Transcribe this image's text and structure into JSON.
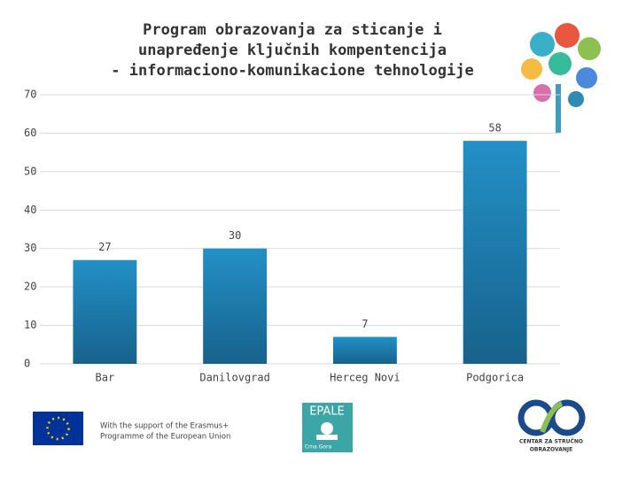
{
  "chart_data": {
    "type": "bar",
    "title": [
      "Program obrazovanja za sticanje i",
      "unapređenje ključnih kompentencija",
      "- informaciono-komunikacione tehnologije"
    ],
    "categories": [
      "Bar",
      "Danilovgrad",
      "Herceg Novi",
      "Podgorica"
    ],
    "values": [
      27,
      30,
      7,
      58
    ],
    "color": "#1f7fb3",
    "ylim": [
      0,
      70
    ],
    "yticks": [
      0,
      10,
      20,
      30,
      40,
      50,
      60,
      70
    ],
    "grid": true
  },
  "footer": {
    "eu_text": [
      "With the support of the Erasmus+",
      "Programme of the European Union"
    ],
    "epale": "EPALE",
    "epale_sub": "Crna Gora",
    "cso": [
      "CENTAR ZA STRUČNO",
      "OBRAZOVANJE"
    ]
  }
}
